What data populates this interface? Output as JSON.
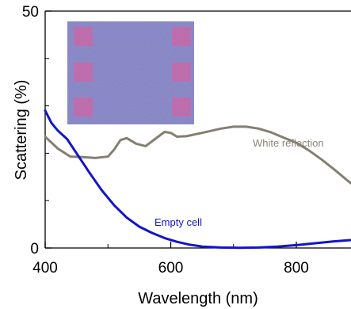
{
  "chart_data": {
    "type": "line",
    "xlabel": "Wavelength (nm)",
    "ylabel": "Scattering (%)",
    "xlim": [
      400,
      900
    ],
    "ylim": [
      0,
      50
    ],
    "xticks": [
      400,
      600,
      800
    ],
    "xtick_labels": [
      "400",
      "600",
      "800"
    ],
    "yticks": [
      0,
      50
    ],
    "ytick_labels": [
      "0",
      "50"
    ],
    "series": [
      {
        "name": "White reflection",
        "color": "#857f72",
        "x": [
          400,
          420,
          440,
          460,
          480,
          500,
          510,
          520,
          530,
          545,
          560,
          575,
          590,
          600,
          610,
          625,
          650,
          680,
          700,
          720,
          740,
          760,
          780,
          800,
          820,
          840,
          860,
          880,
          900
        ],
        "y": [
          23.5,
          21.0,
          19.3,
          19.2,
          19.0,
          19.3,
          20.8,
          22.8,
          23.2,
          22.0,
          21.5,
          23.0,
          24.5,
          24.3,
          23.5,
          23.6,
          24.3,
          25.2,
          25.6,
          25.6,
          25.2,
          24.4,
          23.3,
          22.2,
          20.6,
          18.7,
          16.6,
          14.4,
          12.3
        ]
      },
      {
        "name": "Empty cell",
        "color": "#1414c8",
        "x": [
          400,
          410,
          420,
          435,
          450,
          470,
          490,
          510,
          530,
          550,
          570,
          590,
          610,
          630,
          650,
          680,
          710,
          740,
          770,
          800,
          830,
          860,
          900
        ],
        "y": [
          29.0,
          26.4,
          24.8,
          23.0,
          20.0,
          16.0,
          12.2,
          9.0,
          6.4,
          4.5,
          3.2,
          2.1,
          1.3,
          0.7,
          0.3,
          0.1,
          0.05,
          0.1,
          0.3,
          0.6,
          1.0,
          1.4,
          1.8
        ]
      }
    ],
    "annotations": [
      {
        "text": "White reflection",
        "x": 810,
        "y": 27.0,
        "color": "#8a8478"
      },
      {
        "text": "Empty cell",
        "x": 570,
        "y": 5.7,
        "color": "#1414c8"
      }
    ],
    "inset": {
      "type": "image",
      "description_colors": {
        "background": "#7f7ec0",
        "squares": "#c46aa8"
      },
      "squares_grid": {
        "rows": 3,
        "cols": 2
      }
    }
  }
}
